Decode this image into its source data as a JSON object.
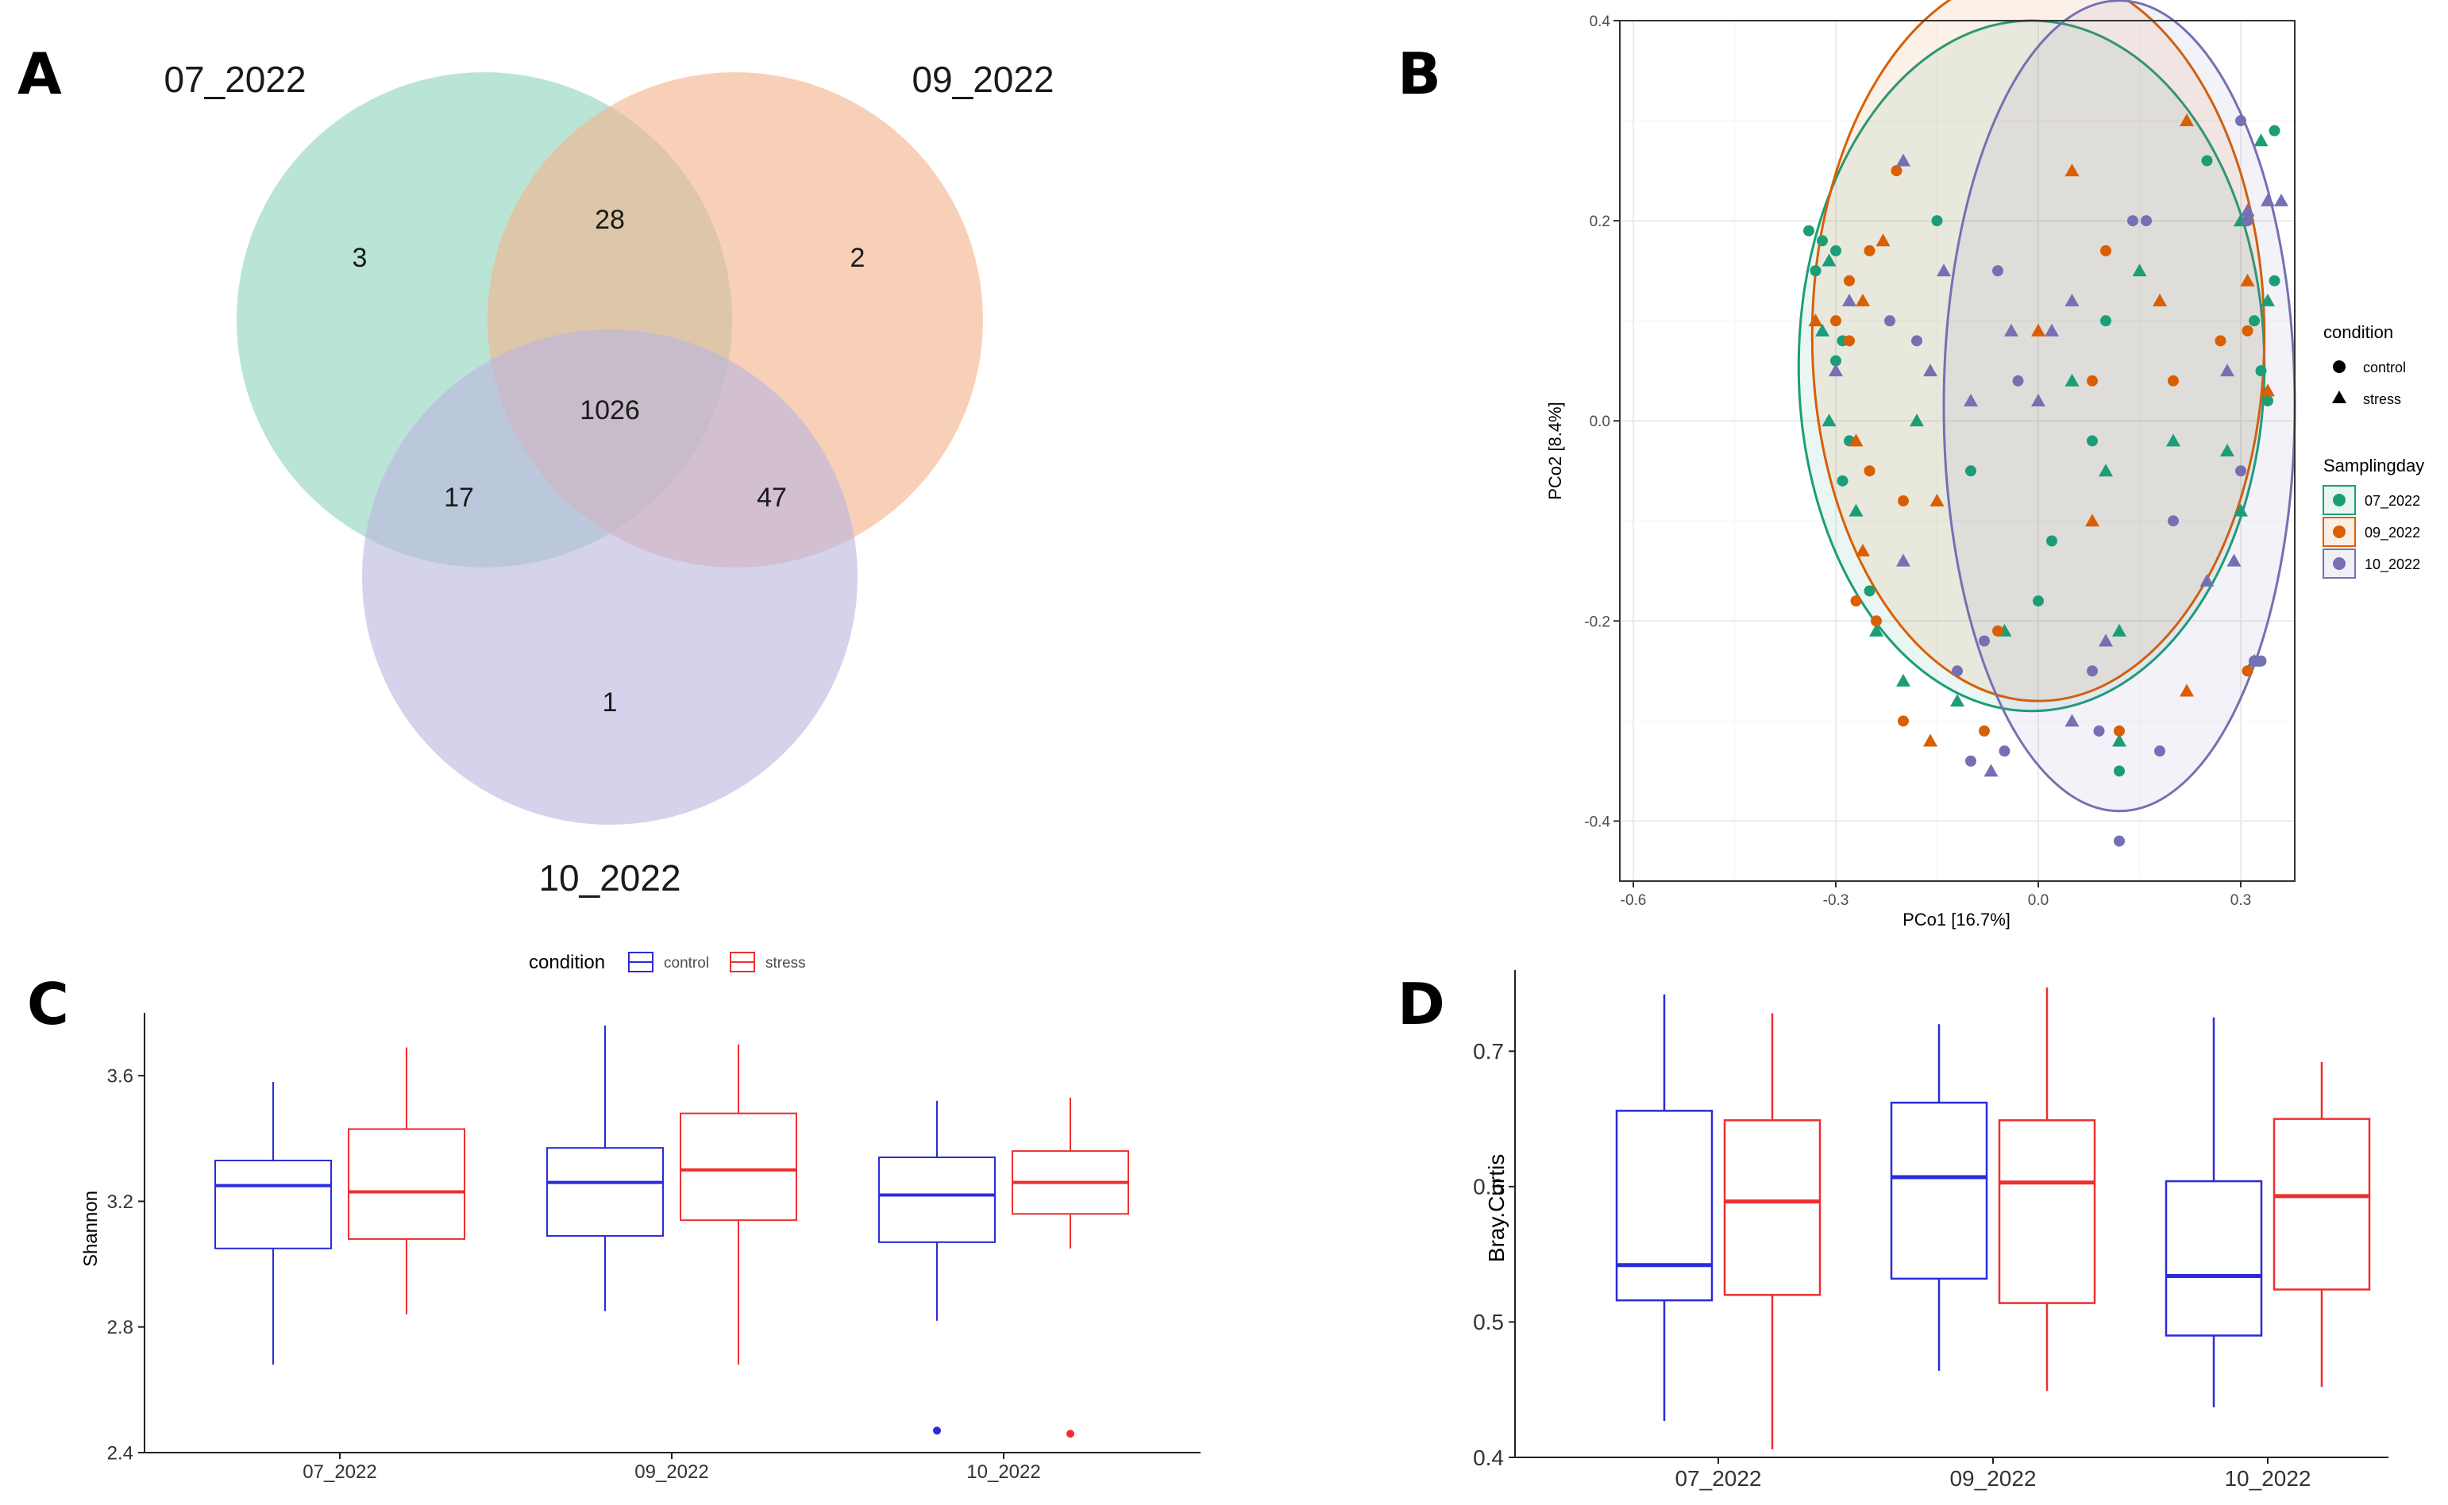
{
  "panels": {
    "a": "A",
    "b": "B",
    "c": "C",
    "d": "D"
  },
  "chart_data": [
    {
      "type": "venn",
      "panel": "A",
      "sets": [
        "07_2022",
        "09_2022",
        "10_2022"
      ],
      "colors": {
        "07_2022": "#8fd3bd",
        "09_2022": "#f4b38d",
        "10_2022": "#bcb7de"
      },
      "regions": {
        "only_07": "3",
        "only_09": "2",
        "only_10": "1",
        "07_09": "28",
        "07_10": "17",
        "09_10": "47",
        "all": "1026"
      }
    },
    {
      "type": "scatter",
      "panel": "B",
      "xlabel": "PCo1 [16.7%]",
      "ylabel": "PCo2 [8.4%]",
      "xlim": [
        -0.62,
        0.38
      ],
      "ylim": [
        -0.46,
        0.4
      ],
      "xticks": [
        -0.6,
        -0.3,
        0.0,
        0.3
      ],
      "xtick_labels": [
        "-0.6",
        "-0.3",
        "0.0",
        "0.3"
      ],
      "yticks": [
        -0.4,
        -0.2,
        0.0,
        0.2,
        0.4
      ],
      "ytick_labels": [
        "-0.4",
        "-0.2",
        "0.0",
        "0.2",
        "0.4"
      ],
      "grid": true,
      "legend": {
        "shape_title": "condition",
        "shape_items": [
          "control",
          "stress"
        ],
        "color_title": "Samplingday",
        "color_items": [
          "07_2022",
          "09_2022",
          "10_2022"
        ]
      },
      "colors": {
        "07_2022": "#1b9e77",
        "09_2022": "#d95f02",
        "10_2022": "#7570b3"
      },
      "ellipses": [
        {
          "group": "07_2022",
          "cx": -0.01,
          "cy": 0.055,
          "rx": 0.345,
          "ry": 0.345
        },
        {
          "group": "09_2022",
          "cx": 0.0,
          "cy": 0.085,
          "rx": 0.335,
          "ry": 0.365
        },
        {
          "group": "10_2022",
          "cx": 0.12,
          "cy": 0.015,
          "rx": 0.26,
          "ry": 0.405
        }
      ],
      "points": [
        [
          -0.34,
          0.19,
          0,
          0
        ],
        [
          -0.32,
          0.18,
          0,
          0
        ],
        [
          -0.31,
          0.16,
          0,
          1
        ],
        [
          -0.33,
          0.15,
          0,
          0
        ],
        [
          -0.3,
          0.17,
          0,
          0
        ],
        [
          -0.32,
          0.09,
          0,
          1
        ],
        [
          -0.29,
          0.08,
          0,
          0
        ],
        [
          -0.3,
          0.06,
          0,
          0
        ],
        [
          -0.31,
          0.0,
          0,
          1
        ],
        [
          -0.28,
          -0.02,
          0,
          0
        ],
        [
          -0.29,
          -0.06,
          0,
          0
        ],
        [
          -0.27,
          -0.09,
          0,
          1
        ],
        [
          -0.25,
          -0.17,
          0,
          0
        ],
        [
          -0.24,
          -0.21,
          0,
          1
        ],
        [
          -0.2,
          -0.26,
          0,
          1
        ],
        [
          -0.12,
          -0.28,
          0,
          1
        ],
        [
          -0.05,
          -0.21,
          0,
          1
        ],
        [
          0.02,
          -0.12,
          0,
          0
        ],
        [
          0.05,
          0.04,
          0,
          1
        ],
        [
          0.08,
          -0.02,
          0,
          0
        ],
        [
          0.1,
          0.1,
          0,
          0
        ],
        [
          0.1,
          -0.05,
          0,
          1
        ],
        [
          0.12,
          -0.21,
          0,
          1
        ],
        [
          0.12,
          -0.32,
          0,
          1
        ],
        [
          0.12,
          -0.35,
          0,
          0
        ],
        [
          0.15,
          0.15,
          0,
          1
        ],
        [
          0.2,
          -0.02,
          0,
          1
        ],
        [
          0.25,
          0.26,
          0,
          0
        ],
        [
          0.3,
          0.2,
          0,
          1
        ],
        [
          0.32,
          0.1,
          0,
          0
        ],
        [
          0.33,
          0.05,
          0,
          0
        ],
        [
          0.34,
          0.12,
          0,
          1
        ],
        [
          0.35,
          0.14,
          0,
          0
        ],
        [
          0.33,
          0.28,
          0,
          1
        ],
        [
          0.35,
          0.29,
          0,
          0
        ],
        [
          0.3,
          -0.09,
          0,
          1
        ],
        [
          0.28,
          -0.03,
          0,
          1
        ],
        [
          0.34,
          0.02,
          0,
          0
        ],
        [
          0.32,
          -0.24,
          0,
          1
        ],
        [
          -0.15,
          0.2,
          0,
          0
        ],
        [
          -0.18,
          0.0,
          0,
          1
        ],
        [
          -0.1,
          -0.05,
          0,
          0
        ],
        [
          0.0,
          -0.18,
          0,
          0
        ],
        [
          -0.33,
          0.1,
          1,
          1
        ],
        [
          -0.3,
          0.1,
          1,
          0
        ],
        [
          -0.28,
          0.14,
          1,
          0
        ],
        [
          -0.28,
          0.08,
          1,
          0
        ],
        [
          -0.26,
          0.12,
          1,
          1
        ],
        [
          -0.25,
          0.17,
          1,
          0
        ],
        [
          -0.23,
          0.18,
          1,
          1
        ],
        [
          -0.21,
          0.25,
          1,
          0
        ],
        [
          -0.27,
          -0.02,
          1,
          1
        ],
        [
          -0.25,
          -0.05,
          1,
          0
        ],
        [
          -0.24,
          -0.2,
          1,
          0
        ],
        [
          -0.27,
          -0.18,
          1,
          0
        ],
        [
          -0.2,
          -0.3,
          1,
          0
        ],
        [
          -0.16,
          -0.32,
          1,
          1
        ],
        [
          -0.08,
          -0.31,
          1,
          0
        ],
        [
          -0.06,
          -0.21,
          1,
          0
        ],
        [
          0.05,
          0.25,
          1,
          1
        ],
        [
          0.08,
          0.04,
          1,
          0
        ],
        [
          0.1,
          0.17,
          1,
          0
        ],
        [
          0.08,
          -0.1,
          1,
          1
        ],
        [
          0.12,
          -0.31,
          1,
          0
        ],
        [
          0.18,
          0.12,
          1,
          1
        ],
        [
          0.2,
          0.04,
          1,
          0
        ],
        [
          0.22,
          0.3,
          1,
          1
        ],
        [
          0.27,
          0.08,
          1,
          0
        ],
        [
          0.31,
          0.09,
          1,
          0
        ],
        [
          0.31,
          -0.25,
          1,
          0
        ],
        [
          0.31,
          0.14,
          1,
          1
        ],
        [
          0.34,
          0.03,
          1,
          1
        ],
        [
          -0.2,
          -0.08,
          1,
          0
        ],
        [
          -0.15,
          -0.08,
          1,
          1
        ],
        [
          0.0,
          0.09,
          1,
          1
        ],
        [
          0.22,
          -0.27,
          1,
          1
        ],
        [
          -0.26,
          -0.13,
          1,
          1
        ],
        [
          -0.3,
          0.05,
          2,
          1
        ],
        [
          -0.28,
          0.12,
          2,
          1
        ],
        [
          -0.22,
          0.1,
          2,
          0
        ],
        [
          -0.2,
          -0.14,
          2,
          1
        ],
        [
          -0.18,
          0.08,
          2,
          0
        ],
        [
          -0.16,
          0.05,
          2,
          1
        ],
        [
          -0.14,
          0.15,
          2,
          1
        ],
        [
          -0.12,
          -0.25,
          2,
          0
        ],
        [
          -0.1,
          -0.34,
          2,
          0
        ],
        [
          -0.08,
          -0.22,
          2,
          0
        ],
        [
          -0.07,
          -0.35,
          2,
          1
        ],
        [
          -0.05,
          -0.33,
          2,
          0
        ],
        [
          -0.04,
          0.09,
          2,
          1
        ],
        [
          -0.03,
          0.04,
          2,
          0
        ],
        [
          0.0,
          0.02,
          2,
          1
        ],
        [
          0.02,
          0.09,
          2,
          1
        ],
        [
          0.05,
          0.12,
          2,
          1
        ],
        [
          0.08,
          -0.25,
          2,
          0
        ],
        [
          0.09,
          -0.31,
          2,
          0
        ],
        [
          0.1,
          -0.22,
          2,
          1
        ],
        [
          0.12,
          -0.42,
          2,
          0
        ],
        [
          0.14,
          0.2,
          2,
          0
        ],
        [
          0.16,
          0.2,
          2,
          0
        ],
        [
          0.18,
          -0.33,
          2,
          0
        ],
        [
          0.2,
          -0.1,
          2,
          0
        ],
        [
          0.25,
          -0.16,
          2,
          1
        ],
        [
          0.28,
          0.05,
          2,
          1
        ],
        [
          0.29,
          -0.14,
          2,
          1
        ],
        [
          0.3,
          0.3,
          2,
          0
        ],
        [
          0.31,
          0.21,
          2,
          1
        ],
        [
          0.31,
          0.2,
          2,
          0
        ],
        [
          0.32,
          -0.24,
          2,
          0
        ],
        [
          0.33,
          -0.24,
          2,
          0
        ],
        [
          0.34,
          0.22,
          2,
          1
        ],
        [
          0.36,
          0.22,
          2,
          1
        ],
        [
          0.3,
          -0.05,
          2,
          0
        ],
        [
          -0.06,
          0.15,
          2,
          0
        ],
        [
          -0.2,
          0.26,
          2,
          1
        ],
        [
          -0.1,
          0.02,
          2,
          1
        ],
        [
          0.05,
          -0.3,
          2,
          1
        ]
      ]
    },
    {
      "type": "box",
      "panel": "C",
      "ylabel": "Shannon",
      "categories": [
        "07_2022",
        "09_2022",
        "10_2022"
      ],
      "ylim": [
        2.4,
        3.8
      ],
      "yticks": [
        2.4,
        2.8,
        3.2,
        3.6
      ],
      "ytick_labels": [
        "2.4",
        "2.8",
        "3.2",
        "3.6"
      ],
      "legend": {
        "title": "condition",
        "items": [
          "control",
          "stress"
        ],
        "position": "top"
      },
      "colors": {
        "control": "#2b2bdb",
        "stress": "#ee2f2f"
      },
      "series": [
        {
          "name": "control",
          "boxes": [
            {
              "min": 2.68,
              "q1": 3.05,
              "median": 3.25,
              "q3": 3.33,
              "max": 3.58,
              "outliers": []
            },
            {
              "min": 2.85,
              "q1": 3.09,
              "median": 3.26,
              "q3": 3.37,
              "max": 3.76,
              "outliers": []
            },
            {
              "min": 2.82,
              "q1": 3.07,
              "median": 3.22,
              "q3": 3.34,
              "max": 3.52,
              "outliers": [
                2.47
              ]
            }
          ]
        },
        {
          "name": "stress",
          "boxes": [
            {
              "min": 2.84,
              "q1": 3.08,
              "median": 3.23,
              "q3": 3.43,
              "max": 3.69,
              "outliers": []
            },
            {
              "min": 2.68,
              "q1": 3.14,
              "median": 3.3,
              "q3": 3.48,
              "max": 3.7,
              "outliers": []
            },
            {
              "min": 3.05,
              "q1": 3.16,
              "median": 3.26,
              "q3": 3.36,
              "max": 3.53,
              "outliers": [
                2.46
              ]
            }
          ]
        }
      ]
    },
    {
      "type": "box",
      "panel": "D",
      "ylabel": "Bray.Curtis",
      "categories": [
        "07_2022",
        "09_2022",
        "10_2022"
      ],
      "ylim": [
        0.4,
        0.76
      ],
      "yticks": [
        0.4,
        0.5,
        0.6,
        0.7
      ],
      "ytick_labels": [
        "0.4",
        "0.5",
        "0.6",
        "0.7"
      ],
      "colors": {
        "control": "#2b2bdb",
        "stress": "#ee2f2f"
      },
      "series": [
        {
          "name": "control",
          "boxes": [
            {
              "min": 0.427,
              "q1": 0.516,
              "median": 0.542,
              "q3": 0.656,
              "max": 0.742
            },
            {
              "min": 0.464,
              "q1": 0.532,
              "median": 0.607,
              "q3": 0.662,
              "max": 0.72
            },
            {
              "min": 0.437,
              "q1": 0.49,
              "median": 0.534,
              "q3": 0.604,
              "max": 0.725
            }
          ]
        },
        {
          "name": "stress",
          "boxes": [
            {
              "min": 0.406,
              "q1": 0.52,
              "median": 0.589,
              "q3": 0.649,
              "max": 0.728
            },
            {
              "min": 0.449,
              "q1": 0.514,
              "median": 0.603,
              "q3": 0.649,
              "max": 0.747
            },
            {
              "min": 0.452,
              "q1": 0.524,
              "median": 0.593,
              "q3": 0.65,
              "max": 0.692
            }
          ]
        }
      ]
    }
  ]
}
